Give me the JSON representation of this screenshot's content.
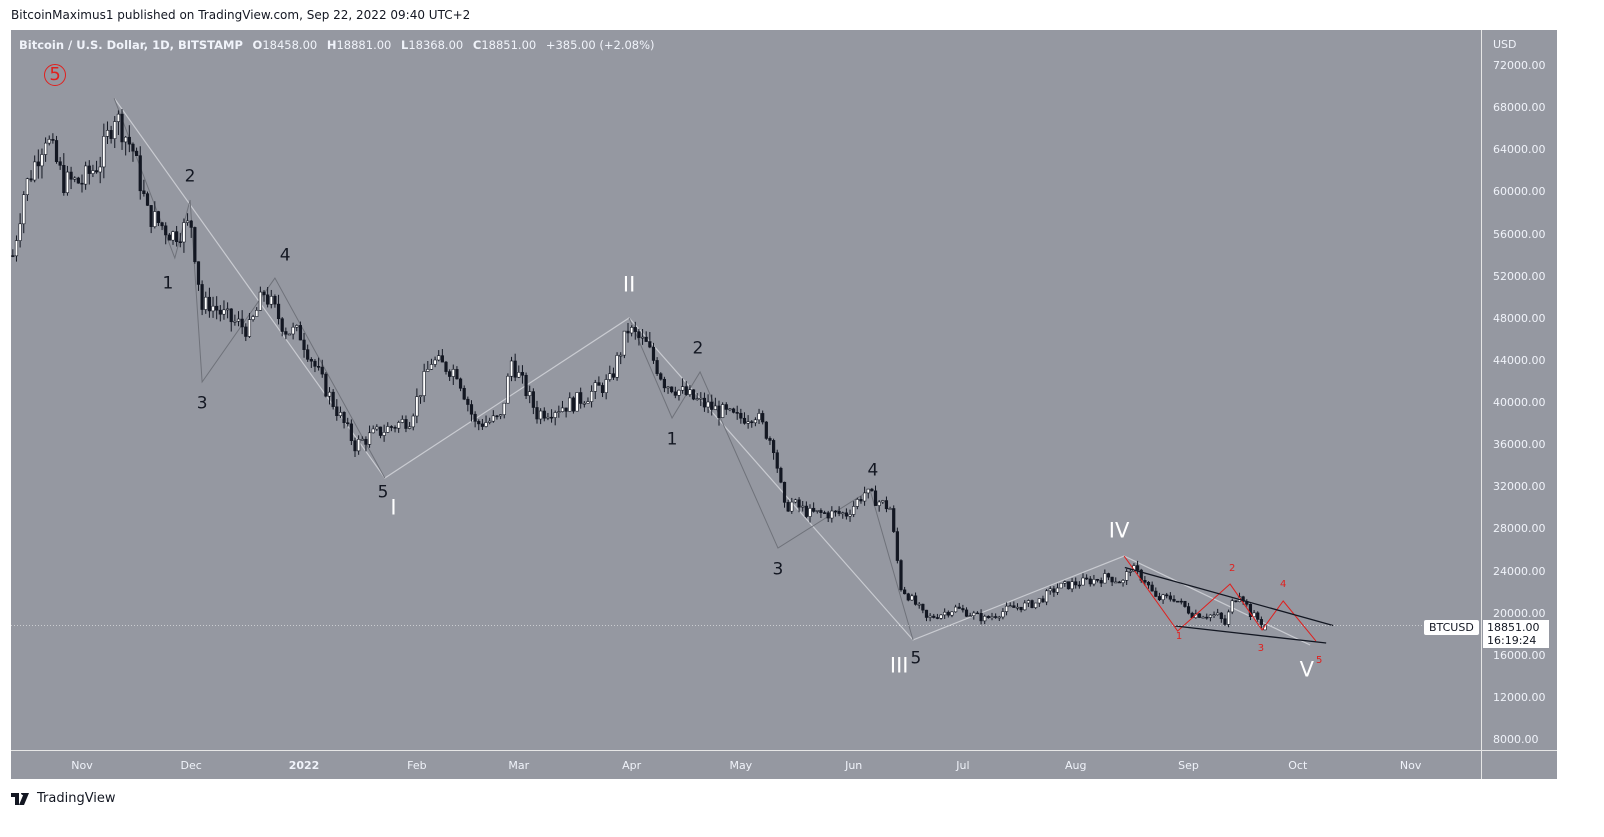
{
  "publisher": "BitcoinMaximus1 published on TradingView.com, Sep 22, 2022 09:40 UTC+2",
  "legend": {
    "title": "Bitcoin / U.S. Dollar, 1D, BITSTAMP",
    "o_label": "O",
    "o": "18458.00",
    "h_label": "H",
    "h": "18881.00",
    "l_label": "L",
    "l": "18368.00",
    "c_label": "C",
    "c": "18851.00",
    "change": "+385.00 (+2.08%)"
  },
  "price_axis": {
    "currency": "USD",
    "ticks": [
      "72000.00",
      "68000.00",
      "64000.00",
      "60000.00",
      "56000.00",
      "52000.00",
      "48000.00",
      "44000.00",
      "40000.00",
      "36000.00",
      "32000.00",
      "28000.00",
      "24000.00",
      "20000.00",
      "16000.00",
      "12000.00",
      "8000.00"
    ]
  },
  "last_price": {
    "symbol": "BTCUSD",
    "price": "18851.00",
    "countdown": "16:19:24"
  },
  "footer": {
    "brand": "TradingView"
  },
  "colors": {
    "background": "#9598a1",
    "up": "#ffffff",
    "down": "#131722",
    "wave": "#c9cbd1",
    "subwave": "#6f727a",
    "red": "#e0201e"
  },
  "chart_data": {
    "type": "candlestick",
    "title": "Bitcoin / U.S. Dollar, 1D, BITSTAMP",
    "x_unit": "days since 2021-11-01",
    "ylim": [
      8000,
      72000
    ],
    "xlim": [
      -19.5,
      384
    ],
    "x_ticks": [
      {
        "label": "Nov",
        "day": 0
      },
      {
        "label": "Dec",
        "day": 30
      },
      {
        "label": "2022",
        "day": 61,
        "bold": true
      },
      {
        "label": "Feb",
        "day": 92
      },
      {
        "label": "Mar",
        "day": 120
      },
      {
        "label": "Apr",
        "day": 151
      },
      {
        "label": "May",
        "day": 181
      },
      {
        "label": "Jun",
        "day": 212
      },
      {
        "label": "Jul",
        "day": 242
      },
      {
        "label": "Aug",
        "day": 273
      },
      {
        "label": "Sep",
        "day": 304
      },
      {
        "label": "Oct",
        "day": 334
      },
      {
        "label": "Nov",
        "day": 365
      }
    ],
    "y_ticks": [
      72000,
      68000,
      64000,
      60000,
      56000,
      52000,
      48000,
      44000,
      40000,
      36000,
      32000,
      28000,
      24000,
      20000,
      16000,
      12000,
      8000
    ],
    "price_path": [
      [
        -19,
        54000
      ],
      [
        -16,
        60000
      ],
      [
        -10,
        65500
      ],
      [
        -5,
        61000
      ],
      [
        0,
        61000
      ],
      [
        5,
        63000
      ],
      [
        9,
        67500
      ],
      [
        14,
        64000
      ],
      [
        18,
        58000
      ],
      [
        25,
        56000
      ],
      [
        30,
        57000
      ],
      [
        33,
        49000
      ],
      [
        35,
        49500
      ],
      [
        40,
        48000
      ],
      [
        46,
        47000
      ],
      [
        50,
        50500
      ],
      [
        56,
        47000
      ],
      [
        60,
        46500
      ],
      [
        66,
        42000
      ],
      [
        75,
        36000
      ],
      [
        80,
        37000
      ],
      [
        90,
        38500
      ],
      [
        96,
        44000
      ],
      [
        103,
        43000
      ],
      [
        108,
        38000
      ],
      [
        115,
        38500
      ],
      [
        118,
        44000
      ],
      [
        125,
        39000
      ],
      [
        135,
        40000
      ],
      [
        145,
        42000
      ],
      [
        150,
        47000
      ],
      [
        155,
        45500
      ],
      [
        160,
        42000
      ],
      [
        170,
        40000
      ],
      [
        180,
        38500
      ],
      [
        185,
        39000
      ],
      [
        190,
        36000
      ],
      [
        193,
        30000
      ],
      [
        195,
        30500
      ],
      [
        200,
        29500
      ],
      [
        210,
        29500
      ],
      [
        215,
        31500
      ],
      [
        222,
        30000
      ],
      [
        225,
        22500
      ],
      [
        230,
        20500
      ],
      [
        232,
        19500
      ],
      [
        240,
        20500
      ],
      [
        248,
        19500
      ],
      [
        255,
        20500
      ],
      [
        262,
        21000
      ],
      [
        268,
        22500
      ],
      [
        275,
        23000
      ],
      [
        282,
        23500
      ],
      [
        286,
        23000
      ],
      [
        288,
        24400
      ],
      [
        292,
        23200
      ],
      [
        295,
        21400
      ],
      [
        300,
        21500
      ],
      [
        305,
        20000
      ],
      [
        312,
        19800
      ],
      [
        314,
        19000
      ],
      [
        316,
        21000
      ],
      [
        318,
        22000
      ],
      [
        319,
        21500
      ],
      [
        321,
        20000
      ],
      [
        324,
        19200
      ],
      [
        325,
        18851
      ]
    ],
    "annotations": {
      "labels": [
        {
          "text": "⑤",
          "day": -7.4,
          "price": 71150,
          "style": "c"
        },
        {
          "text": "2",
          "day": 29.7,
          "price": 61470,
          "style": "b"
        },
        {
          "text": "1",
          "day": 23.6,
          "price": 51300,
          "style": "b"
        },
        {
          "text": "4",
          "day": 55.8,
          "price": 53960,
          "style": "b"
        },
        {
          "text": "3",
          "day": 33,
          "price": 39900,
          "style": "b"
        },
        {
          "text": "5",
          "day": 82.7,
          "price": 31460,
          "style": "b"
        },
        {
          "text": "I",
          "day": 83.5,
          "price": 30000,
          "style": "w"
        },
        {
          "text": "II",
          "day": 150.3,
          "price": 51200,
          "style": "w"
        },
        {
          "text": "2",
          "day": 169.2,
          "price": 45130,
          "style": "b"
        },
        {
          "text": "1",
          "day": 162.1,
          "price": 36490,
          "style": "b"
        },
        {
          "text": "4",
          "day": 217.3,
          "price": 33550,
          "style": "b"
        },
        {
          "text": "3",
          "day": 191.2,
          "price": 24140,
          "style": "b"
        },
        {
          "text": "5",
          "day": 229.1,
          "price": 15700,
          "style": "b"
        },
        {
          "text": "III",
          "day": 228,
          "price": 15030,
          "style": "w"
        },
        {
          "text": "IV",
          "day": 284.9,
          "price": 27850,
          "style": "w"
        },
        {
          "text": "V",
          "day": 336.5,
          "price": 14650,
          "style": "w"
        },
        {
          "text": "2",
          "day": 316,
          "price": 24240,
          "style": "r"
        },
        {
          "text": "4",
          "day": 330,
          "price": 22720,
          "style": "r"
        },
        {
          "text": "1",
          "day": 301.4,
          "price": 17780,
          "style": "r"
        },
        {
          "text": "3",
          "day": 323.9,
          "price": 16640,
          "style": "r"
        },
        {
          "text": "5",
          "day": 339,
          "price": 15500,
          "style": "r"
        }
      ],
      "wave_path": [
        [
          8.8,
          68970
        ],
        [
          83.2,
          32880
        ],
        [
          150.3,
          48080
        ],
        [
          228.3,
          17500
        ],
        [
          286.3,
          25470
        ],
        [
          337.4,
          17020
        ]
      ],
      "subwave_paths": [
        [
          [
            8.8,
            68970
          ],
          [
            25.5,
            53770
          ],
          [
            29.7,
            59280
          ],
          [
            33,
            42000
          ],
          [
            53,
            51870
          ],
          [
            83.2,
            32880
          ]
        ],
        [
          [
            150.3,
            48080
          ],
          [
            162.1,
            38580
          ],
          [
            169.8,
            42950
          ],
          [
            191.2,
            26230
          ],
          [
            216.5,
            31740
          ],
          [
            228.3,
            17500
          ]
        ]
      ],
      "red_path": [
        [
          286.3,
          25470
        ],
        [
          301,
          18350
        ],
        [
          315.4,
          22810
        ],
        [
          324.2,
          18450
        ],
        [
          330,
          21200
        ],
        [
          339,
          17400
        ]
      ],
      "wedge_upper": [
        [
          286.5,
          24380
        ],
        [
          343.7,
          18870
        ]
      ],
      "wedge_lower": [
        [
          300.3,
          18830
        ],
        [
          341.8,
          17210
        ]
      ]
    }
  }
}
